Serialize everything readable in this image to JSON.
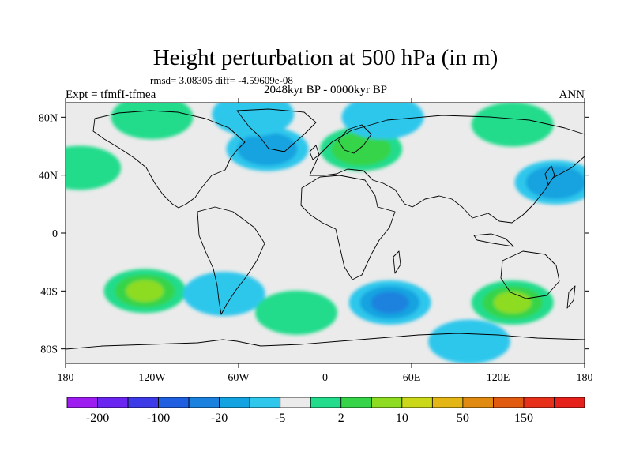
{
  "chart_data": {
    "type": "heatmap",
    "title": "Height perturbation at 500 hPa (in m)",
    "stats_line": "rmsd= 3.08305 diff= -4.59609e-08",
    "left_string": "Expt = tfmfI-tfmea",
    "center_string": "2048kyr BP - 0000kyr BP",
    "right_string": "ANN",
    "x_ticks": [
      "180",
      "120W",
      "60W",
      "0",
      "60E",
      "120E",
      "180"
    ],
    "y_ticks": [
      "80N",
      "40N",
      "0",
      "40S",
      "80S"
    ],
    "xlim": [
      -180,
      180
    ],
    "ylim": [
      -90,
      90
    ],
    "grid": false,
    "colorbar": {
      "labels": [
        "-200",
        "-100",
        "-20",
        "-5",
        "2",
        "10",
        "50",
        "150"
      ],
      "colors": [
        "#9d1cf0",
        "#6a25f0",
        "#3d3be8",
        "#1f5fe0",
        "#1a82de",
        "#12a3e0",
        "#2fc7ec",
        "#ebebeb",
        "#22dc8c",
        "#36d448",
        "#8edc22",
        "#cbd81a",
        "#e3b615",
        "#e08a12",
        "#e05a10",
        "#e6301a",
        "#e6201a"
      ]
    },
    "anomalies": [
      {
        "lon": -170,
        "lat": 45,
        "level": 1,
        "color": "#36d448"
      },
      {
        "lon": -120,
        "lat": 80,
        "level": 1,
        "color": "#22dc8c"
      },
      {
        "lon": -40,
        "lat": 58,
        "level": -2,
        "color": "#12a3e0"
      },
      {
        "lon": -50,
        "lat": 82,
        "level": -1,
        "color": "#2fc7ec"
      },
      {
        "lon": 25,
        "lat": 58,
        "level": 2,
        "color": "#36d448"
      },
      {
        "lon": 40,
        "lat": 80,
        "level": -1,
        "color": "#2fc7ec"
      },
      {
        "lon": 130,
        "lat": 75,
        "level": 1,
        "color": "#22dc8c"
      },
      {
        "lon": 160,
        "lat": 35,
        "level": -2,
        "color": "#12a3e0"
      },
      {
        "lon": -125,
        "lat": -40,
        "level": 3,
        "color": "#8edc22"
      },
      {
        "lon": -70,
        "lat": -42,
        "level": -1,
        "color": "#2fc7ec"
      },
      {
        "lon": -20,
        "lat": -55,
        "level": 1,
        "color": "#22dc8c"
      },
      {
        "lon": 45,
        "lat": -48,
        "level": -3,
        "color": "#1a82de"
      },
      {
        "lon": 130,
        "lat": -48,
        "level": 3,
        "color": "#8edc22"
      },
      {
        "lon": 100,
        "lat": -75,
        "level": -1,
        "color": "#2fc7ec"
      }
    ]
  }
}
